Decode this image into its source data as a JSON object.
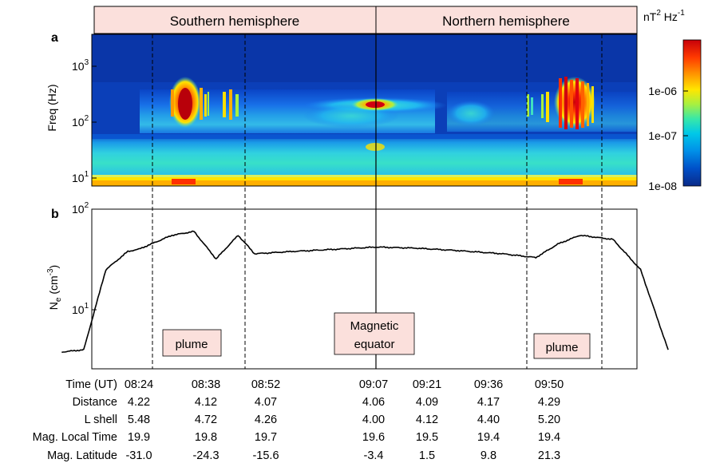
{
  "headers": {
    "south": "Southern hemisphere",
    "north": "Northern hemisphere"
  },
  "panel_labels": {
    "a": "a",
    "b": "b"
  },
  "colorbar": {
    "unit": "nT",
    "unit_sup1": "2",
    "unit_mid": " Hz",
    "unit_sup2": "-1",
    "ticks": [
      "1e-06",
      "1e-07",
      "1e-08"
    ],
    "colors": [
      "#c8000a",
      "#ff3a00",
      "#ff9a00",
      "#ffe600",
      "#a8f040",
      "#38e8a8",
      "#00c8e8",
      "#0090e8",
      "#0050c8",
      "#0a2a88"
    ]
  },
  "panel_a": {
    "ylabel": "Freq (Hz)",
    "yticks": [
      {
        "base": "10",
        "exp": "3"
      },
      {
        "base": "10",
        "exp": "2"
      },
      {
        "base": "10",
        "exp": "1"
      }
    ]
  },
  "panel_b": {
    "ylabel_main": "N",
    "ylabel_sub": "e",
    "ylabel_unit": " (cm",
    "ylabel_exp": "-3",
    "ylabel_close": ")",
    "yticks": [
      {
        "base": "10",
        "exp": "2"
      },
      {
        "base": "10",
        "exp": "1"
      }
    ]
  },
  "annotations": {
    "plume_left": "plume",
    "plume_right": "plume",
    "equator_line1": "Magnetic",
    "equator_line2": "equator"
  },
  "table": {
    "row_labels": [
      "Time (UT)",
      "Distance",
      "L shell",
      "Mag. Local Time",
      "Mag. Latitude"
    ],
    "columns": [
      [
        "08:24",
        "4.22",
        "5.48",
        "19.9",
        "-31.0"
      ],
      [
        "08:38",
        "4.12",
        "4.72",
        "19.8",
        "-24.3"
      ],
      [
        "08:52",
        "4.07",
        "4.26",
        "19.7",
        "-15.6"
      ],
      [
        "09:07",
        "4.06",
        "4.00",
        "19.6",
        "-3.4"
      ],
      [
        "09:21",
        "4.09",
        "4.12",
        "19.5",
        "1.5"
      ],
      [
        "09:36",
        "4.17",
        "4.40",
        "19.4",
        "9.8"
      ],
      [
        "09:50",
        "4.29",
        "5.20",
        "19.4",
        "21.3"
      ]
    ]
  },
  "chart_data": [
    {
      "type": "heatmap",
      "xlabel": "",
      "ylabel": "Freq (Hz)",
      "ylog": true,
      "colorbar_label": "nT^2 Hz^-1",
      "colorbar_log": true,
      "colorbar_ticks": [
        1e-08,
        1e-07,
        1e-06
      ],
      "hemisphere_labels": [
        "Southern hemisphere",
        "Northern hemisphere"
      ],
      "features": [
        {
          "time": "08:30",
          "freq_hz": 180,
          "intensity": "very high"
        },
        {
          "time": "09:07",
          "freq_hz": 200,
          "intensity": "high"
        },
        {
          "time": "09:45",
          "freq_hz": 170,
          "intensity": "very high"
        }
      ]
    },
    {
      "type": "line",
      "xlabel": "Time (UT)",
      "ylabel": "Ne (cm-3)",
      "ylog": true,
      "ylim": [
        3,
        100
      ],
      "x": [
        "08:10",
        "08:14",
        "08:18",
        "08:22",
        "08:24",
        "08:30",
        "08:34",
        "08:38",
        "08:42",
        "08:45",
        "08:52",
        "09:00",
        "09:07",
        "09:14",
        "09:21",
        "09:30",
        "09:36",
        "09:40",
        "09:44",
        "09:50",
        "09:55",
        "10:00"
      ],
      "series": [
        {
          "values": [
            3.8,
            4.0,
            25,
            38,
            40,
            55,
            60,
            32,
            55,
            36,
            38,
            40,
            42,
            41,
            39,
            36,
            33,
            45,
            55,
            50,
            25,
            4.0
          ]
        }
      ],
      "annotations": [
        "plume",
        "Magnetic equator",
        "plume"
      ]
    }
  ]
}
